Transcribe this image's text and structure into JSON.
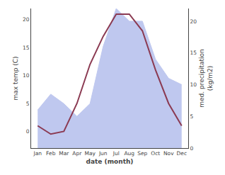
{
  "chart_data": {
    "type": "line",
    "categories": [
      "Jan",
      "Feb",
      "Mar",
      "Apr",
      "May",
      "Jun",
      "Jul",
      "Aug",
      "Sep",
      "Oct",
      "Nov",
      "Dec"
    ],
    "series": [
      {
        "type": "area",
        "axis": "y2",
        "color": "#bfc8ef",
        "values": [
          6.0,
          8.5,
          7.0,
          5.0,
          7.0,
          16.0,
          22.0,
          20.0,
          20.0,
          14.0,
          11.0,
          10.0
        ]
      },
      {
        "type": "line",
        "color": "#8b3a52",
        "values": [
          1.0,
          -0.5,
          0.0,
          5.0,
          12.0,
          17.0,
          21.0,
          21.0,
          18.0,
          11.0,
          5.0,
          1.0
        ]
      }
    ],
    "xlabel": "date (month)",
    "ylabel": "max temp (C)",
    "y2label": "med. precipitation\n(kg/m2)",
    "ylim": [
      -3,
      22
    ],
    "yticks": [
      0,
      5,
      10,
      15,
      20
    ],
    "y2lim": [
      0,
      22
    ],
    "y2ticks": [
      0,
      5,
      10,
      15,
      20
    ],
    "grid": false
  }
}
